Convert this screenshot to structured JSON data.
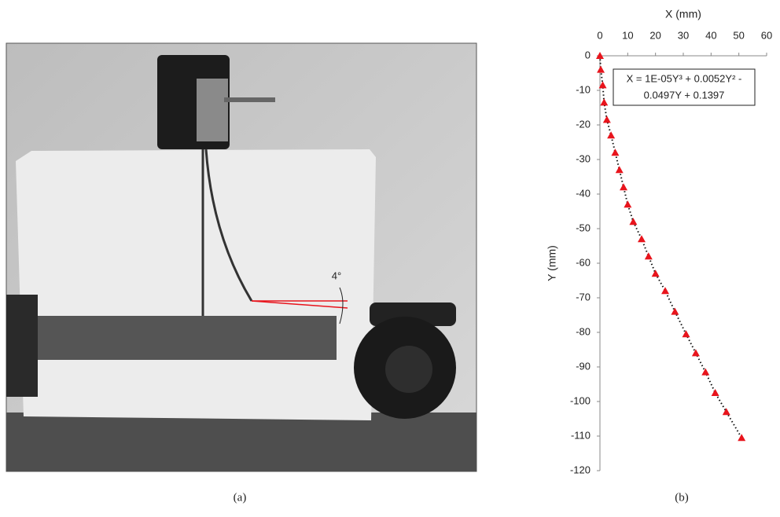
{
  "figure": {
    "panel_a": {
      "label": "(a)",
      "annotation": "4°"
    },
    "panel_b": {
      "label": "(b)"
    }
  },
  "chart_data": {
    "type": "scatter",
    "xlabel": "X (mm)",
    "ylabel": "Y (mm)",
    "equation": [
      "X = 1E-05Y³ + 0.0052Y² -",
      "0.0497Y + 0.1397"
    ],
    "x": [
      0,
      0.3,
      1,
      1.5,
      2.5,
      4,
      5.5,
      7,
      8.5,
      10,
      12,
      15,
      17.5,
      20,
      23.5,
      27,
      31,
      34.5,
      38,
      41.5,
      45.5,
      51
    ],
    "values": [
      0,
      -4,
      -8.5,
      -13.5,
      -18.5,
      -23,
      -28,
      -33,
      -38,
      -43,
      -48,
      -53,
      -58,
      -63,
      -68,
      -74,
      -80.5,
      -86,
      -91.5,
      -97.5,
      -103,
      -110.5
    ],
    "color": "#e8141c",
    "trendline": true,
    "xlim": [
      0,
      60
    ],
    "xticks": [
      0,
      10,
      20,
      30,
      40,
      50,
      60
    ],
    "ylim": [
      -120,
      0
    ],
    "yticks": [
      0,
      -10,
      -20,
      -30,
      -40,
      -50,
      -60,
      -70,
      -80,
      -90,
      -100,
      -110,
      -120
    ]
  }
}
